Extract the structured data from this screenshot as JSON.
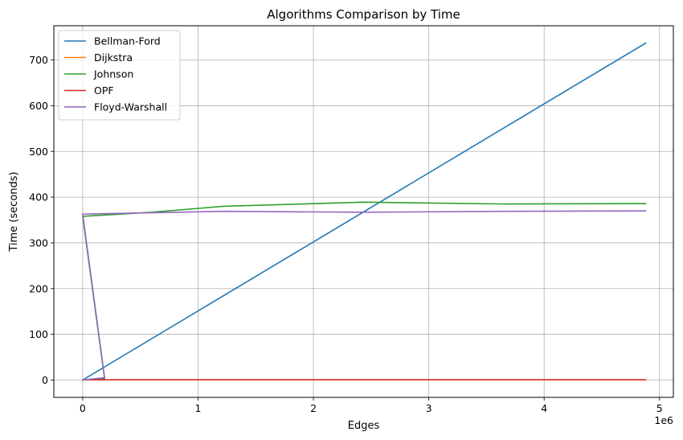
{
  "chart_data": {
    "type": "line",
    "title": "Algorithms Comparison by Time",
    "xlabel": "Edges",
    "ylabel": "Time (seconds)",
    "x_offset_label": "1e6",
    "xlim": [
      -250000,
      5120000
    ],
    "ylim": [
      -38,
      775
    ],
    "xticks": [
      0,
      1000000,
      2000000,
      3000000,
      4000000,
      5000000
    ],
    "xtick_labels": [
      "0",
      "1",
      "2",
      "3",
      "4",
      "5"
    ],
    "yticks": [
      0,
      100,
      200,
      300,
      400,
      500,
      600,
      700
    ],
    "ytick_labels": [
      "0",
      "100",
      "200",
      "300",
      "400",
      "500",
      "600",
      "700"
    ],
    "grid": true,
    "legend_position": "upper-left",
    "series": [
      {
        "name": "Bellman-Ford",
        "color": "#1f77b4",
        "x": [
          0,
          4880000
        ],
        "y": [
          0,
          737
        ]
      },
      {
        "name": "Dijkstra",
        "color": "#ff7f0e",
        "x": [
          0,
          1000,
          4880000
        ],
        "y": [
          0,
          0.5,
          0.5
        ]
      },
      {
        "name": "Johnson",
        "color": "#2ca02c",
        "x": [
          0,
          190000,
          0,
          600000,
          1220000,
          2440000,
          3660000,
          4880000
        ],
        "y": [
          0,
          3,
          358,
          367,
          380,
          389,
          385,
          386
        ]
      },
      {
        "name": "OPF",
        "color": "#d62728",
        "x": [
          0,
          1000,
          4880000
        ],
        "y": [
          0,
          0.5,
          0.5
        ]
      },
      {
        "name": "Floyd-Warshall",
        "color": "#9467bd",
        "x": [
          0,
          190000,
          0,
          1220000,
          2440000,
          3660000,
          4880000
        ],
        "y": [
          0,
          5,
          363,
          369,
          367,
          369,
          370
        ]
      }
    ]
  }
}
